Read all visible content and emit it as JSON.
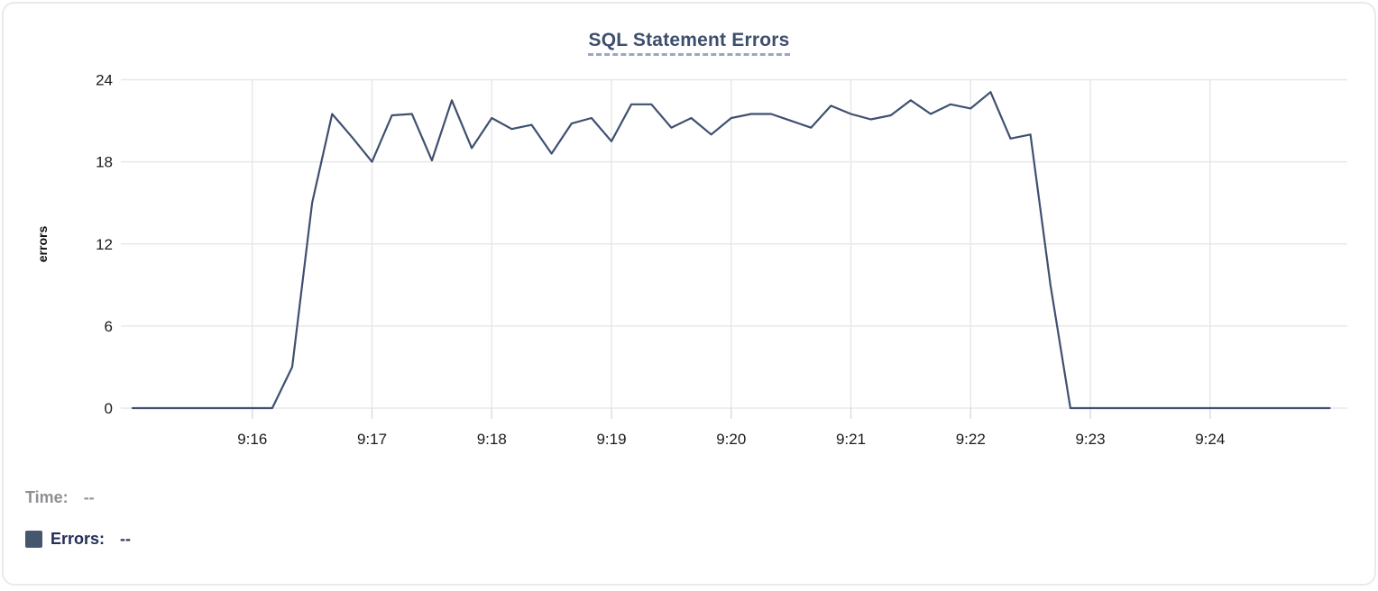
{
  "chart_data": {
    "type": "line",
    "title": "SQL Statement Errors",
    "xlabel": "",
    "ylabel": "errors",
    "ylim": [
      0,
      24
    ],
    "yticks": [
      0,
      6,
      12,
      18,
      24
    ],
    "xticks": [
      "9:16",
      "9:17",
      "9:18",
      "9:19",
      "9:20",
      "9:21",
      "9:22",
      "9:23",
      "9:24"
    ],
    "grid": true,
    "legend_position": "bottom-left",
    "line_color": "#3f5070",
    "sample_interval_seconds": 10,
    "series": [
      {
        "name": "Errors",
        "x_times": [
          "9:15:00",
          "9:15:10",
          "9:15:20",
          "9:15:30",
          "9:15:40",
          "9:15:50",
          "9:16:00",
          "9:16:10",
          "9:16:20",
          "9:16:30",
          "9:16:40",
          "9:16:50",
          "9:17:00",
          "9:17:10",
          "9:17:20",
          "9:17:30",
          "9:17:40",
          "9:17:50",
          "9:18:00",
          "9:18:10",
          "9:18:20",
          "9:18:30",
          "9:18:40",
          "9:18:50",
          "9:19:00",
          "9:19:10",
          "9:19:20",
          "9:19:30",
          "9:19:40",
          "9:19:50",
          "9:20:00",
          "9:20:10",
          "9:20:20",
          "9:20:30",
          "9:20:40",
          "9:20:50",
          "9:21:00",
          "9:21:10",
          "9:21:20",
          "9:21:30",
          "9:21:40",
          "9:21:50",
          "9:22:00",
          "9:22:10",
          "9:22:20",
          "9:22:30",
          "9:22:40",
          "9:22:50",
          "9:23:00",
          "9:23:10",
          "9:23:20",
          "9:23:30",
          "9:23:40",
          "9:23:50",
          "9:24:00",
          "9:24:10",
          "9:24:20",
          "9:24:30",
          "9:24:40",
          "9:24:50",
          "9:25:00"
        ],
        "values": [
          0,
          0,
          0,
          0,
          0,
          0,
          0,
          0,
          3,
          15,
          21.5,
          19.8,
          18,
          21.4,
          21.5,
          18.1,
          22.5,
          19,
          21.2,
          20.4,
          20.7,
          18.6,
          20.8,
          21.2,
          19.5,
          22.2,
          22.2,
          20.5,
          21.2,
          20,
          21.2,
          21.5,
          21.5,
          21,
          20.5,
          22.1,
          21.5,
          21.1,
          21.4,
          22.5,
          21.5,
          22.2,
          21.9,
          23.1,
          19.7,
          20,
          9,
          0,
          0,
          0,
          0,
          0,
          0,
          0,
          0,
          0,
          0,
          0,
          0,
          0,
          0
        ]
      }
    ]
  },
  "tooltip": {
    "time_label": "Time:",
    "time_value": "--",
    "errors_label": "Errors:",
    "errors_value": "--",
    "swatch_color": "#46566f"
  }
}
